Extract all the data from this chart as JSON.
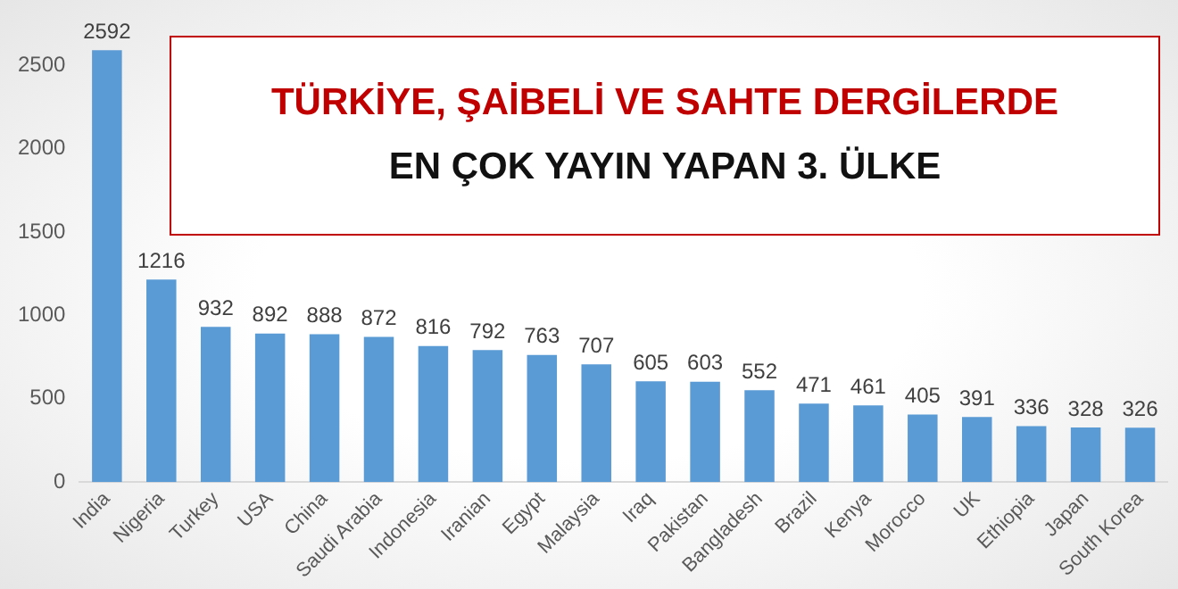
{
  "chart_data": {
    "type": "bar",
    "title": "TÜRKİYE, ŞAİBELİ VE SAHTE DERGİLERDE",
    "subtitle": "EN ÇOK YAYIN YAPAN 3. ÜLKE",
    "categories": [
      "India",
      "Nigeria",
      "Turkey",
      "USA",
      "China",
      "Saudi Arabia",
      "Indonesia",
      "Iranian",
      "Egypt",
      "Malaysia",
      "Iraq",
      "Pakistan",
      "Bangladesh",
      "Brazil",
      "Kenya",
      "Morocco",
      "UK",
      "Ethiopia",
      "Japan",
      "South Korea"
    ],
    "values": [
      2592,
      1216,
      932,
      892,
      888,
      872,
      816,
      792,
      763,
      707,
      605,
      603,
      552,
      471,
      461,
      405,
      391,
      336,
      328,
      326
    ],
    "color": "#5b9bd5",
    "ylim": [
      0,
      2700
    ],
    "yticks": [
      0,
      500,
      1000,
      1500,
      2000,
      2500
    ],
    "data_labels": true,
    "grid": false,
    "legend": false
  }
}
